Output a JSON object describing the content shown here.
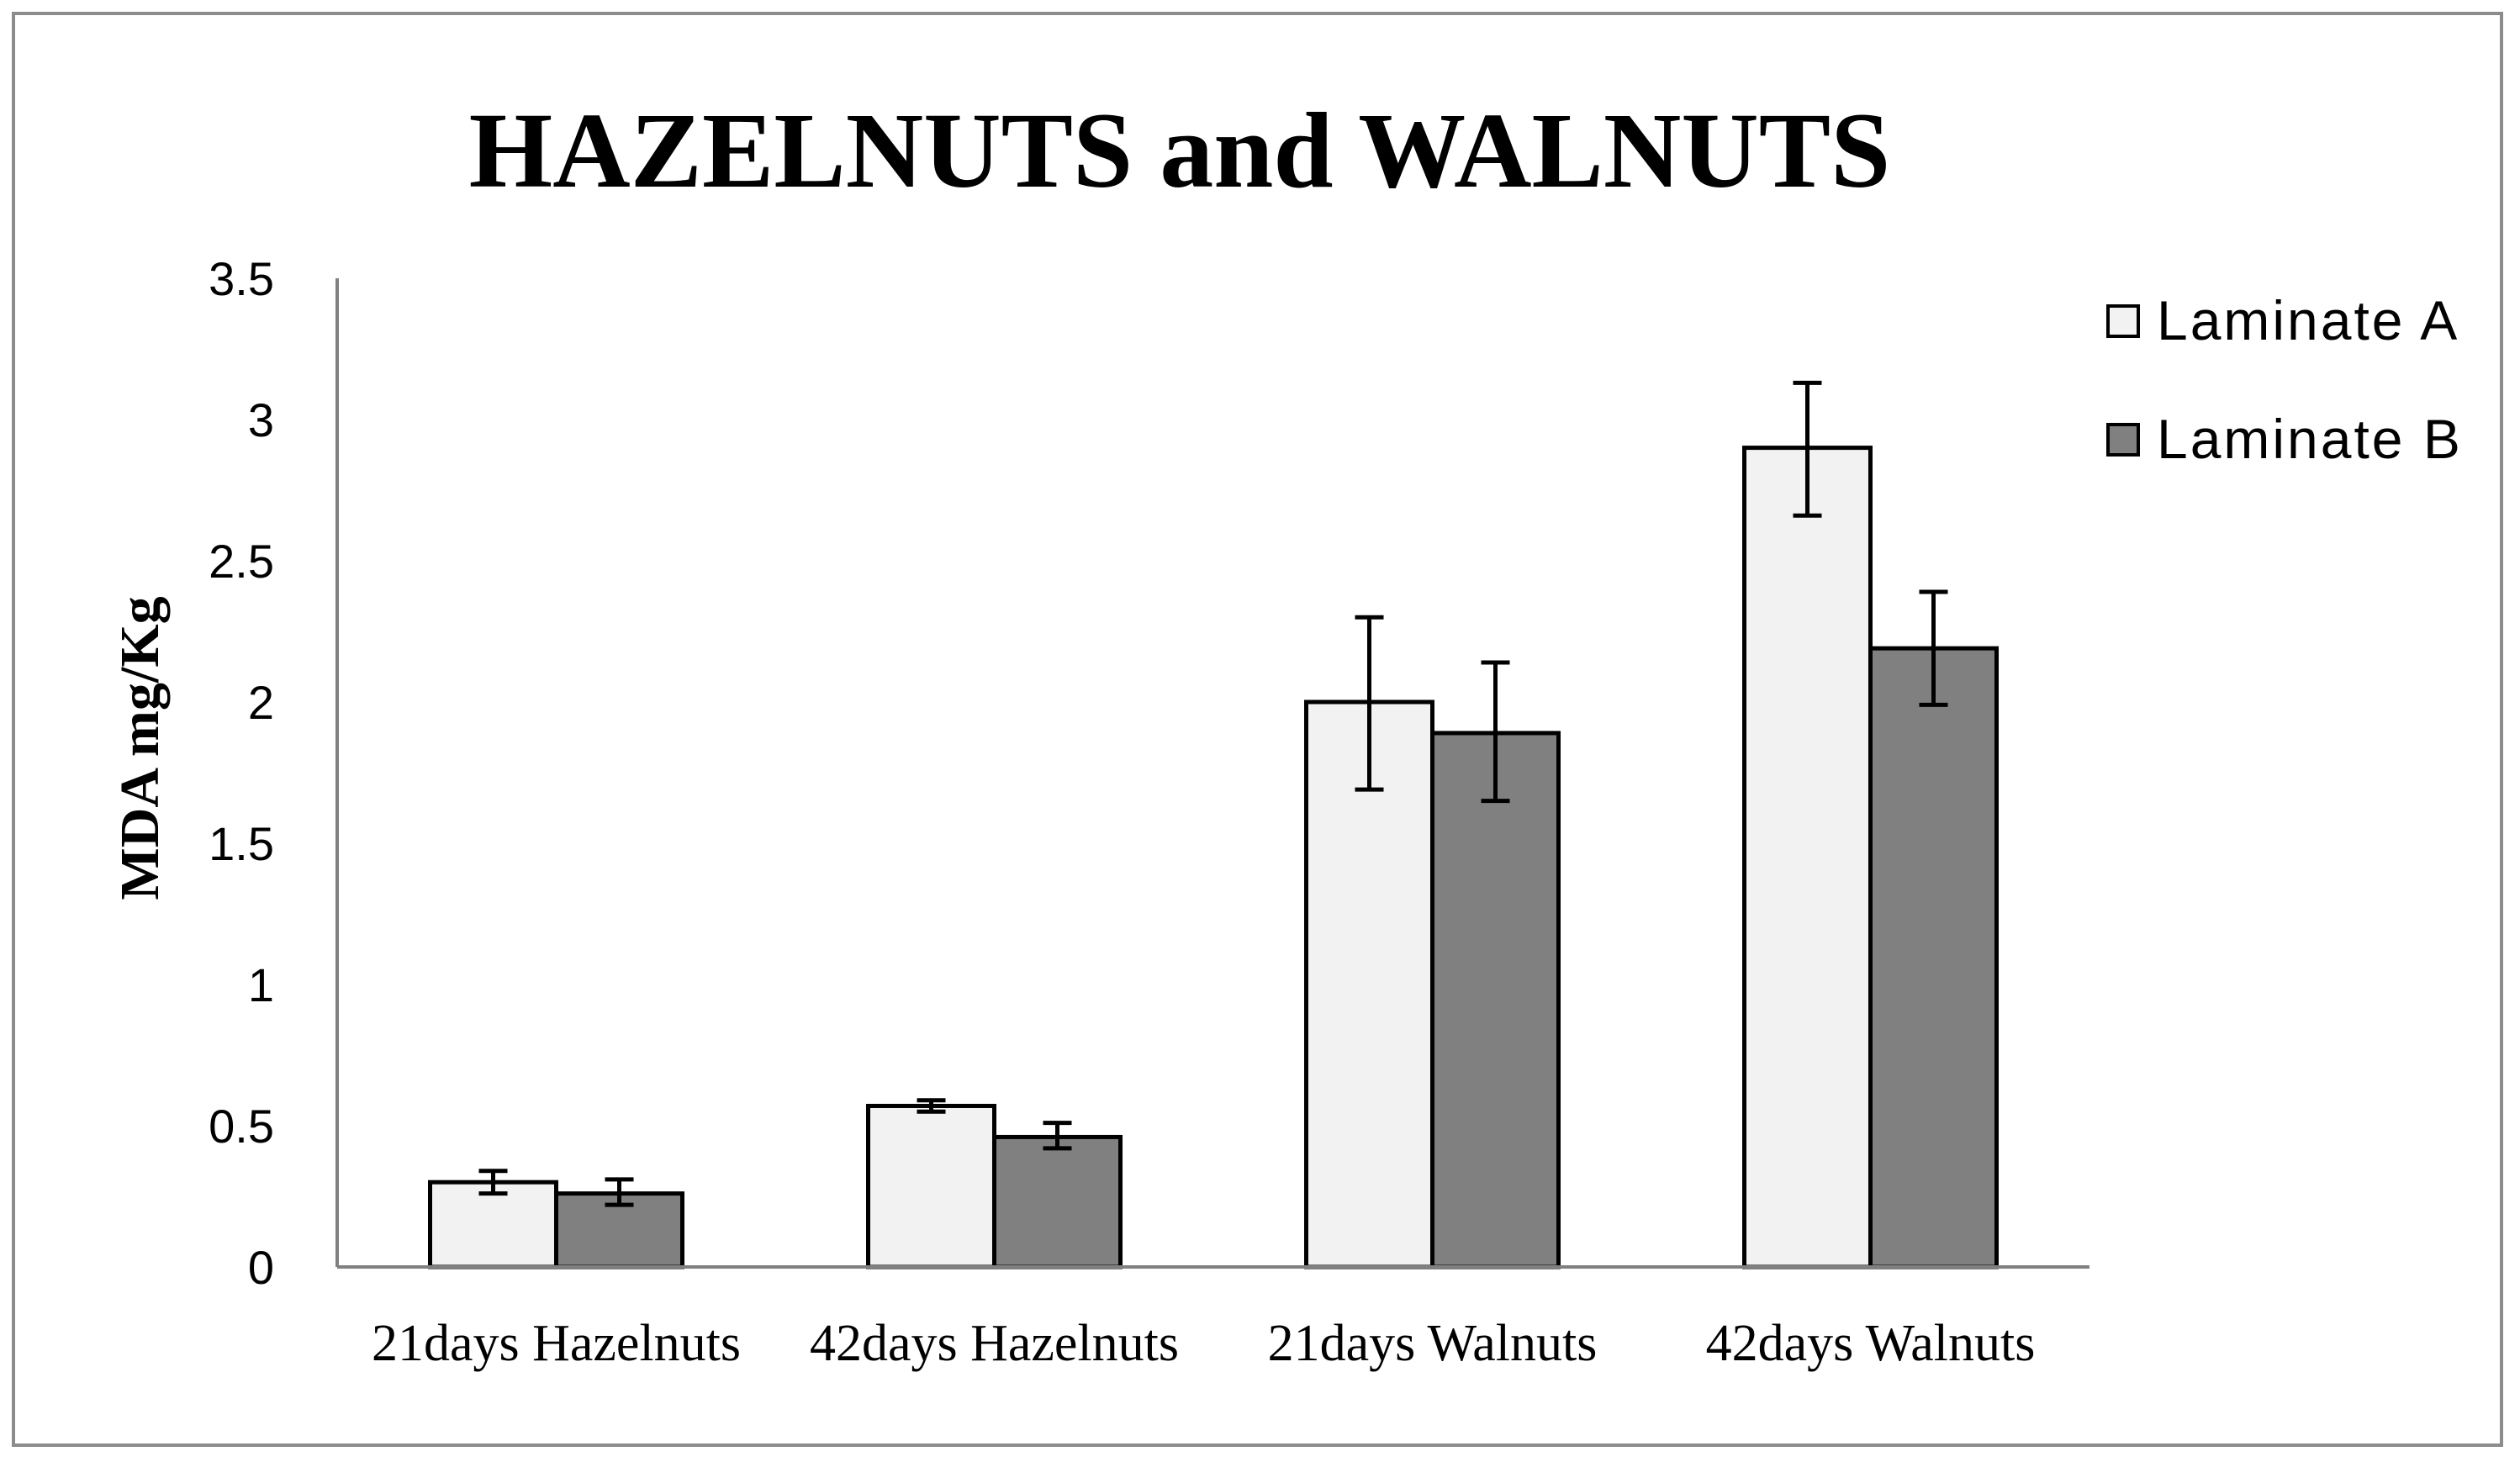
{
  "chart_data": {
    "type": "bar",
    "title": "HAZELNUTS and WALNUTS",
    "xlabel": "",
    "ylabel": "MDA mg/Kg",
    "ylim": [
      0,
      3.5
    ],
    "yticks": [
      "0",
      "0.5",
      "1",
      "1.5",
      "2",
      "2.5",
      "3",
      "3.5"
    ],
    "categories": [
      "21days Hazelnuts",
      "42days Hazelnuts",
      "21days Walnuts",
      "42days Walnuts"
    ],
    "series": [
      {
        "name": "Laminate A",
        "color": "#f2f2f2",
        "values": [
          0.3,
          0.57,
          2.0,
          2.9
        ],
        "err_low": [
          0.26,
          0.55,
          1.69,
          2.66
        ],
        "err_high": [
          0.34,
          0.59,
          2.3,
          3.13
        ]
      },
      {
        "name": "Laminate B",
        "color": "#808080",
        "values": [
          0.26,
          0.46,
          1.89,
          2.19
        ],
        "err_low": [
          0.22,
          0.42,
          1.65,
          1.99
        ],
        "err_high": [
          0.31,
          0.51,
          2.14,
          2.39
        ]
      }
    ],
    "grid": false,
    "legend": "top-right",
    "error_bars": true
  }
}
